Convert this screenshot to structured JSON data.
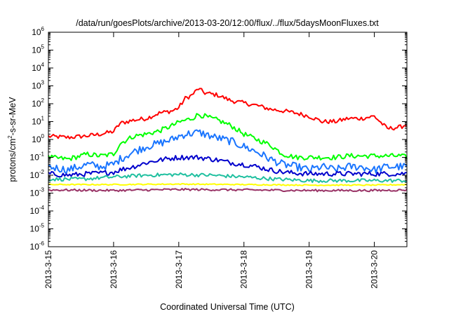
{
  "chart_data": {
    "type": "line",
    "title": "/data/run/goesPlots/archive/2013-03-20/12:00/flux/../flux/5daysMoonFluxes.txt",
    "xlabel": "Coordinated Universal Time (UTC)",
    "ylabel": {
      "base": "protons/cm",
      "exp": "2",
      "rest": "-s-sr-MeV"
    },
    "y_scale": "log",
    "ylim": [
      1e-06,
      1000000.0
    ],
    "xlim_days": [
      0,
      5.5
    ],
    "x_ticks": [
      {
        "day": 0,
        "label": "2013-3-15"
      },
      {
        "day": 1,
        "label": "2013-3-16"
      },
      {
        "day": 2,
        "label": "2013-3-17"
      },
      {
        "day": 3,
        "label": "2013-3-18"
      },
      {
        "day": 4,
        "label": "2013-3-19"
      },
      {
        "day": 5,
        "label": "2013-3-20"
      }
    ],
    "y_ticks": [
      {
        "exp": 6,
        "base": "10",
        "sup": "6"
      },
      {
        "exp": 5,
        "base": "10",
        "sup": "5"
      },
      {
        "exp": 4,
        "base": "10",
        "sup": "4"
      },
      {
        "exp": 3,
        "base": "10",
        "sup": "3"
      },
      {
        "exp": 2,
        "base": "10",
        "sup": "2"
      },
      {
        "exp": 1,
        "base": "10",
        "sup": "1"
      },
      {
        "exp": 0,
        "base": "10",
        "sup": "0"
      },
      {
        "exp": -1,
        "base": "10",
        "sup": "-1"
      },
      {
        "exp": -2,
        "base": "10",
        "sup": "-2"
      },
      {
        "exp": -3,
        "base": "10",
        "sup": "-3"
      },
      {
        "exp": -4,
        "base": "10",
        "sup": "-4"
      },
      {
        "exp": -5,
        "base": "10",
        "sup": "-5"
      },
      {
        "exp": -6,
        "base": "10",
        "sup": "-6"
      }
    ],
    "grid": false,
    "legend": "none",
    "series": [
      {
        "color": "#ff0000",
        "x": [
          0,
          0.3,
          0.6,
          0.8,
          1.0,
          1.1,
          1.3,
          1.5,
          1.7,
          1.9,
          2.0,
          2.1,
          2.2,
          2.3,
          2.4,
          2.5,
          2.6,
          2.8,
          3.0,
          3.2,
          3.4,
          3.6,
          3.8,
          4.0,
          4.2,
          4.4,
          4.6,
          4.8,
          5.0,
          5.2,
          5.4,
          5.5
        ],
        "y": [
          1.5,
          1.3,
          1.6,
          2,
          2.8,
          8,
          12,
          15,
          30,
          40,
          60,
          200,
          300,
          700,
          400,
          350,
          300,
          150,
          110,
          80,
          50,
          40,
          30,
          20,
          10,
          10,
          15,
          15,
          20,
          4,
          5,
          7
        ]
      },
      {
        "color": "#00ff00",
        "x": [
          0,
          0.3,
          0.6,
          0.8,
          1.0,
          1.1,
          1.3,
          1.5,
          1.7,
          1.9,
          2.0,
          2.1,
          2.2,
          2.3,
          2.4,
          2.5,
          2.6,
          2.8,
          3.0,
          3.2,
          3.4,
          3.6,
          3.8,
          4.0,
          4.2,
          4.4,
          4.6,
          4.8,
          5.0,
          5.2,
          5.4,
          5.5
        ],
        "y": [
          0.1,
          0.08,
          0.15,
          0.12,
          0.15,
          0.6,
          1.5,
          2,
          3,
          6,
          9,
          12,
          15,
          25,
          20,
          15,
          12,
          6,
          2,
          1,
          0.5,
          0.15,
          0.1,
          0.1,
          0.1,
          0.1,
          0.12,
          0.12,
          0.12,
          0.12,
          0.12,
          0.1
        ]
      },
      {
        "color": "#1a75ff",
        "x": [
          0,
          0.3,
          0.6,
          0.8,
          1.0,
          1.1,
          1.3,
          1.5,
          1.7,
          1.9,
          2.0,
          2.1,
          2.2,
          2.3,
          2.4,
          2.5,
          2.6,
          2.8,
          3.0,
          3.2,
          3.4,
          3.6,
          3.8,
          4.0,
          4.2,
          4.4,
          4.6,
          4.8,
          5.0,
          5.2,
          5.4,
          5.5
        ],
        "y": [
          0.03,
          0.02,
          0.04,
          0.03,
          0.04,
          0.08,
          0.2,
          0.4,
          0.6,
          1,
          1.5,
          2,
          2.2,
          2.5,
          2,
          1.5,
          1.2,
          0.8,
          0.4,
          0.2,
          0.08,
          0.04,
          0.03,
          0.02,
          0.03,
          0.02,
          0.03,
          0.03,
          0.02,
          0.03,
          0.03,
          0.03
        ]
      },
      {
        "color": "#0000cc",
        "x": [
          0,
          0.3,
          0.6,
          0.8,
          1.0,
          1.1,
          1.3,
          1.5,
          1.7,
          1.9,
          2.0,
          2.1,
          2.2,
          2.3,
          2.4,
          2.5,
          2.6,
          2.8,
          3.0,
          3.2,
          3.4,
          3.6,
          3.8,
          4.0,
          4.2,
          4.4,
          4.6,
          4.8,
          5.0,
          5.2,
          5.4,
          5.5
        ],
        "y": [
          0.012,
          0.01,
          0.012,
          0.013,
          0.015,
          0.02,
          0.03,
          0.05,
          0.07,
          0.09,
          0.1,
          0.1,
          0.1,
          0.1,
          0.09,
          0.08,
          0.07,
          0.05,
          0.04,
          0.03,
          0.02,
          0.015,
          0.013,
          0.012,
          0.012,
          0.012,
          0.012,
          0.012,
          0.012,
          0.012,
          0.012,
          0.013
        ]
      },
      {
        "color": "#20c0a0",
        "x": [
          0,
          0.5,
          1.0,
          1.5,
          2.0,
          2.5,
          3.0,
          3.5,
          4.0,
          4.5,
          5.0,
          5.5
        ],
        "y": [
          0.006,
          0.006,
          0.008,
          0.01,
          0.011,
          0.01,
          0.008,
          0.006,
          0.005,
          0.005,
          0.005,
          0.005
        ]
      },
      {
        "color": "#ffff00",
        "x": [
          0,
          1.0,
          2.0,
          3.0,
          4.0,
          5.0,
          5.5
        ],
        "y": [
          0.003,
          0.003,
          0.0032,
          0.003,
          0.0028,
          0.0028,
          0.003
        ]
      },
      {
        "color": "#993366",
        "x": [
          0,
          1.0,
          2.0,
          3.0,
          4.0,
          5.0,
          5.5
        ],
        "y": [
          0.0015,
          0.0014,
          0.0016,
          0.0015,
          0.0014,
          0.0014,
          0.0015
        ]
      }
    ]
  }
}
